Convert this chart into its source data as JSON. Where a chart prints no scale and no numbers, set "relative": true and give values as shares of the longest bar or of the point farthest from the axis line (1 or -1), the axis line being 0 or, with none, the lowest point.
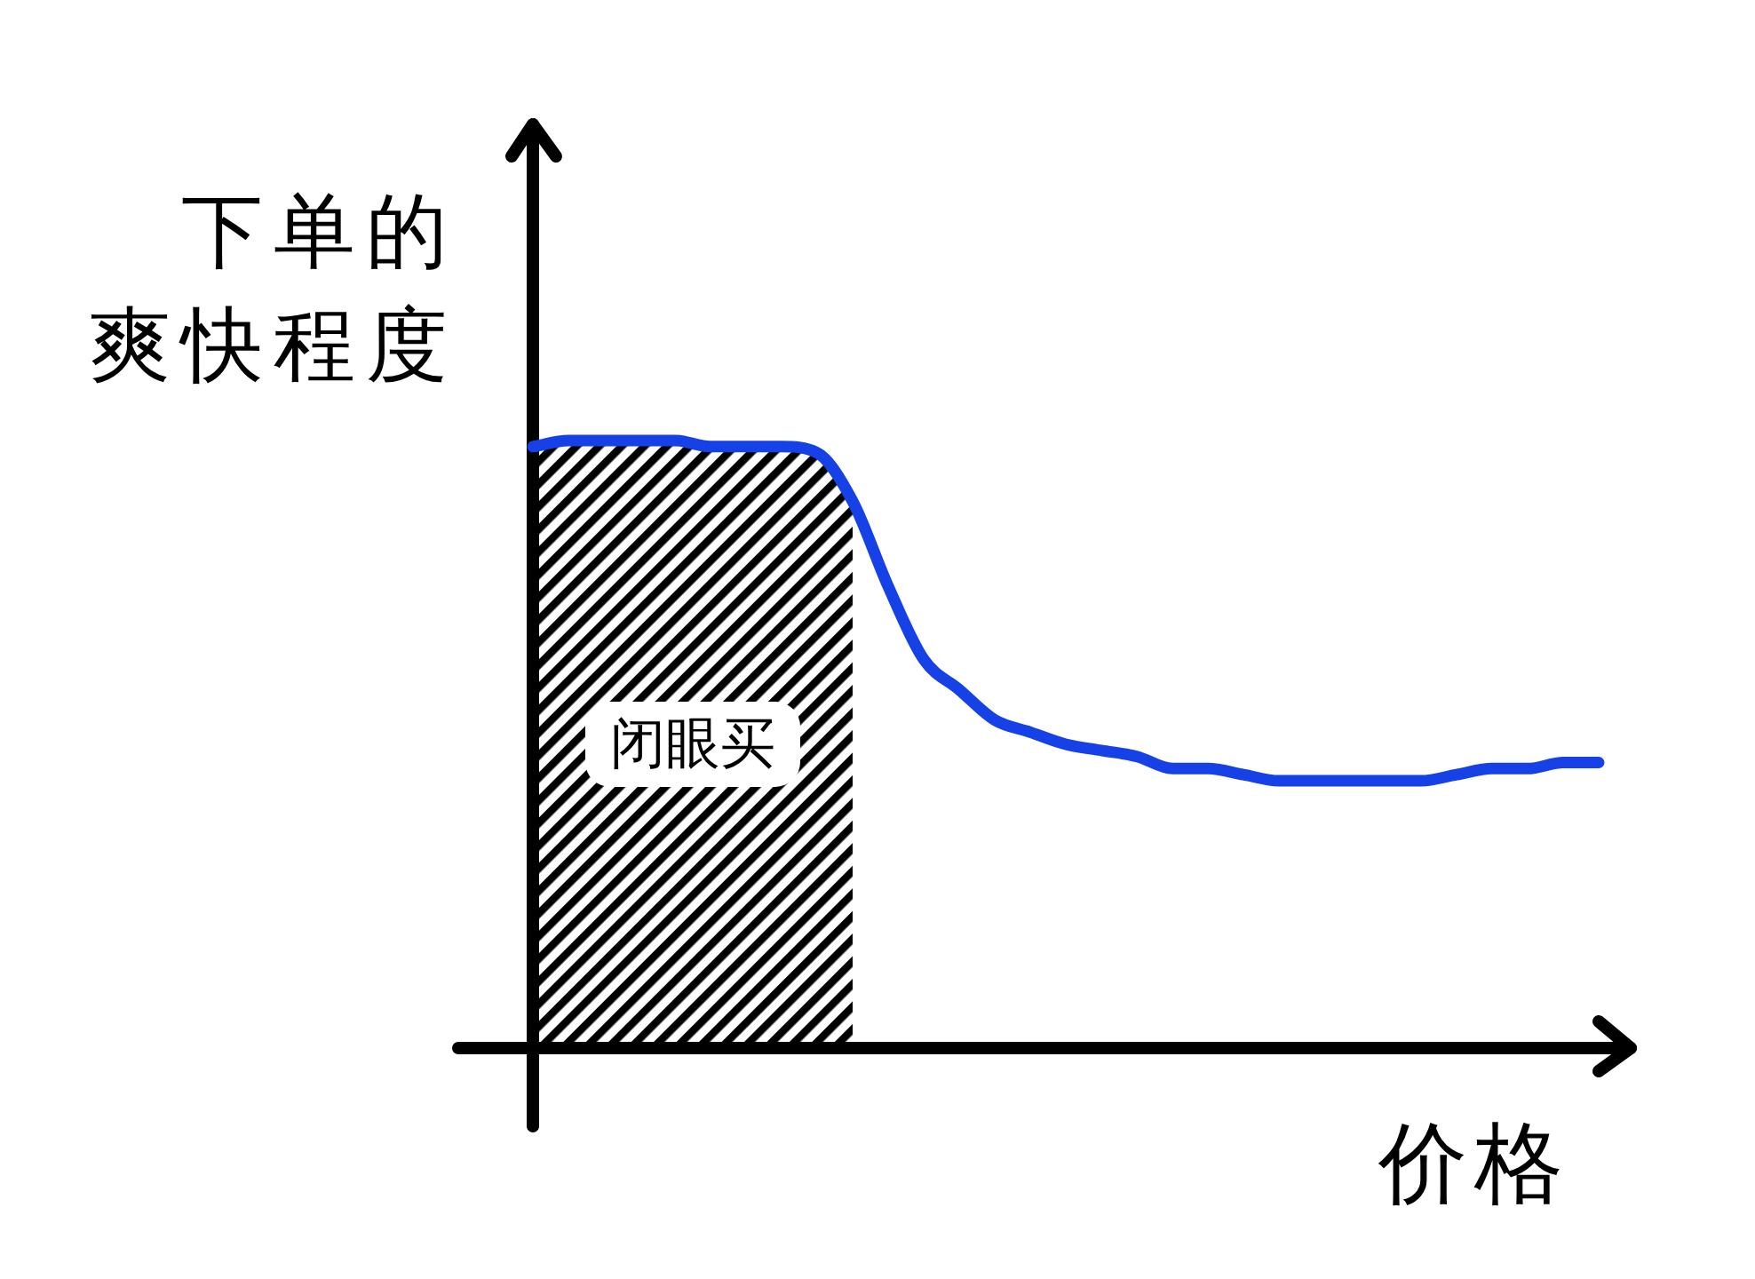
{
  "chart_data": {
    "type": "line",
    "relative": true,
    "xlabel": "价格",
    "ylabel": "下单的爽快程度",
    "categories": [
      null,
      null,
      null,
      null,
      null,
      null,
      null,
      null,
      null,
      null,
      null,
      null,
      null,
      null,
      null,
      null,
      null,
      null,
      null,
      null,
      null,
      null,
      null,
      null,
      null,
      null,
      null,
      null,
      null,
      null,
      null
    ],
    "series": [
      {
        "type": "area",
        "name": "闭眼买",
        "color": "#000000",
        "values": [
          0.99,
          1.0,
          1.0,
          1.0,
          1.0,
          0.99,
          0.99,
          0.99,
          0.98,
          0.9,
          null,
          null,
          null,
          null,
          null,
          null,
          null,
          null,
          null,
          null,
          null,
          null,
          null,
          null,
          null,
          null,
          null,
          null,
          null,
          null,
          null
        ]
      },
      {
        "color": "#1541e6",
        "values": [
          0.99,
          1.0,
          1.0,
          1.0,
          1.0,
          0.99,
          0.99,
          0.99,
          0.98,
          0.9,
          0.76,
          0.64,
          0.59,
          0.54,
          0.52,
          0.5,
          0.49,
          0.48,
          0.46,
          0.46,
          0.45,
          0.44,
          0.44,
          0.44,
          0.44,
          0.44,
          0.45,
          0.46,
          0.46,
          0.47,
          0.47
        ]
      }
    ]
  }
}
